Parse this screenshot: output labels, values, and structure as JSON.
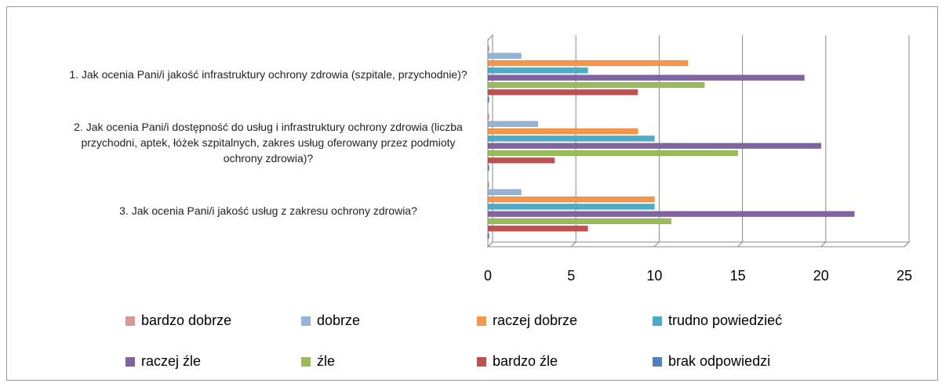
{
  "chart_data": {
    "type": "bar",
    "orientation": "horizontal",
    "categories": [
      "1. Jak ocenia Pani/i jakość infrastruktury ochrony zdrowia (szpitale, przychodnie)?",
      "2. Jak ocenia Pani/i dostępność do usług i infrastruktury ochrony zdrowia (liczba przychodni, aptek, łóżek szpitalnych, zakres usług oferowany przez podmioty ochrony zdrowia)?",
      "3. Jak ocenia Pani/i jakość usług z zakresu ochrony zdrowia?"
    ],
    "series": [
      {
        "name": "bardzo dobrze",
        "color": "#d99795",
        "values": [
          0,
          0,
          0
        ]
      },
      {
        "name": "dobrze",
        "color": "#95b3d7",
        "values": [
          2,
          3,
          2
        ]
      },
      {
        "name": "raczej dobrze",
        "color": "#f79646",
        "values": [
          12,
          9,
          10
        ]
      },
      {
        "name": "trudno powiedzieć",
        "color": "#4bacc6",
        "values": [
          6,
          10,
          10
        ]
      },
      {
        "name": "raczej źle",
        "color": "#8064a2",
        "values": [
          19,
          20,
          22
        ]
      },
      {
        "name": "źle",
        "color": "#9bbb59",
        "values": [
          13,
          15,
          11
        ]
      },
      {
        "name": "bardzo źle",
        "color": "#c0504d",
        "values": [
          9,
          4,
          6
        ]
      },
      {
        "name": "brak odpowiedzi",
        "color": "#4f81bd",
        "values": [
          0,
          0,
          0
        ]
      }
    ],
    "xlim": [
      0,
      25
    ],
    "xticks": [
      0,
      5,
      10,
      15,
      20,
      25
    ],
    "grid": true,
    "legend": "bottom"
  }
}
